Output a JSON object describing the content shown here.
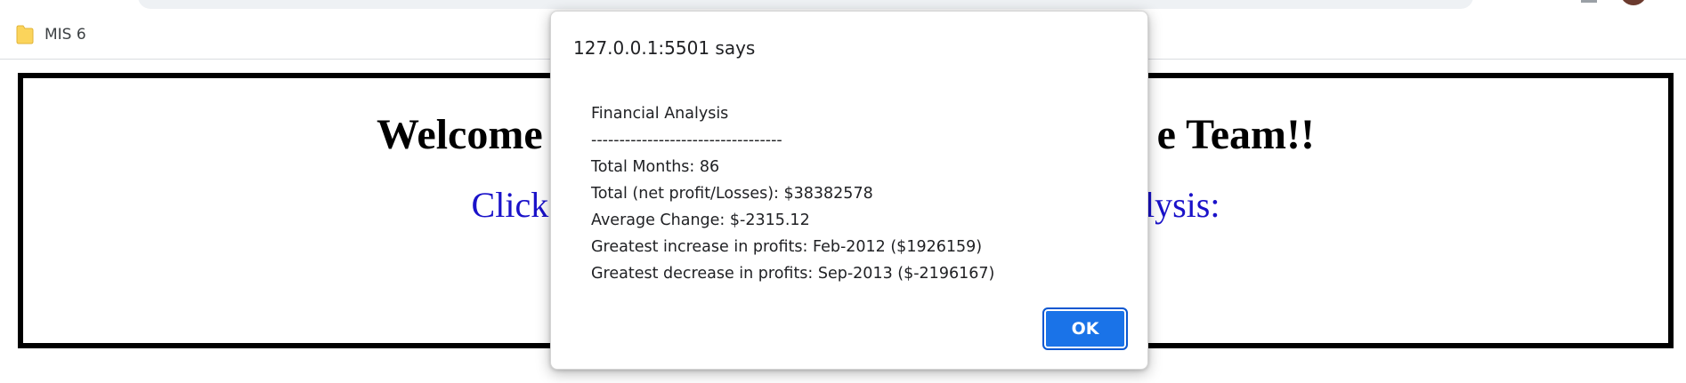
{
  "browser": {
    "bookmarks": [
      {
        "label": "MIS 6",
        "icon": "folder-icon"
      }
    ],
    "colors": {
      "bookmark_folder": "#fbd45b",
      "avatar": "#6b3a2e"
    }
  },
  "page": {
    "heading_left": "Welcome",
    "heading_right": "e Team!!",
    "subheading_left": "Click",
    "subheading_right": "alysis:",
    "colors": {
      "subheading": "#1a12c9",
      "frame": "#000000"
    }
  },
  "alert": {
    "origin_title": "127.0.0.1:5501 says",
    "lines": [
      "Financial Analysis",
      "----------------------------------",
      "Total Months: 86",
      "Total (net profit/Losses): $38382578",
      "Average Change: $-2315.12",
      "Greatest increase in profits: Feb-2012 ($1926159)",
      "Greatest decrease in profits: Sep-2013 ($-2196167)"
    ],
    "ok_label": "OK",
    "colors": {
      "ok_button": "#1a73e8"
    }
  }
}
